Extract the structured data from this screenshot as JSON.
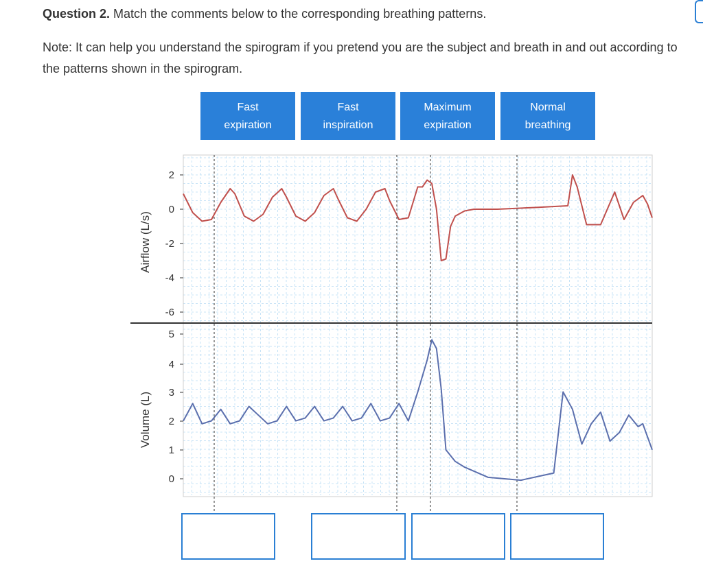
{
  "question": {
    "number_label": "Question 2.",
    "text": " Match the comments below to the corresponding breathing patterns.",
    "note": "Note: It can help you understand the spirogram if you pretend you are the subject and breath in and out according to the patterns shown in the spirogram."
  },
  "chips": [
    {
      "line1": "Fast",
      "line2": "expiration"
    },
    {
      "line1": "Fast",
      "line2": "inspiration"
    },
    {
      "line1": "Maximum",
      "line2": "expiration"
    },
    {
      "line1": "Normal",
      "line2": "breathing"
    }
  ],
  "colors": {
    "chip_bg": "#2a80d9",
    "airflow_line": "#c0504d",
    "volume_line": "#5b6fad",
    "grid": "#b9dcf5",
    "dropbox_border": "#2a7fd4"
  },
  "chart_data": [
    {
      "type": "line",
      "ylabel": "Airflow (L/s)",
      "ytick_labels": [
        "2",
        "0",
        "-2",
        "-4",
        "-6"
      ],
      "ylim": [
        -6.7,
        2.8
      ],
      "grid": true,
      "series": [
        {
          "x": [
            0,
            2,
            4,
            6,
            8,
            10,
            11,
            13,
            15,
            17,
            19,
            21,
            22,
            24,
            26,
            28,
            30,
            32,
            33,
            35,
            37,
            39,
            41,
            43,
            44,
            46,
            48,
            50,
            51,
            52,
            53,
            54,
            55,
            56,
            57,
            58,
            60,
            62,
            67,
            75,
            82,
            83,
            84,
            86,
            89,
            92,
            94,
            96,
            98,
            99,
            100
          ],
          "y": [
            0.9,
            -0.2,
            -0.7,
            -0.6,
            0.4,
            1.2,
            0.9,
            -0.4,
            -0.7,
            -0.3,
            0.7,
            1.2,
            0.7,
            -0.4,
            -0.7,
            -0.2,
            0.8,
            1.2,
            0.6,
            -0.5,
            -0.7,
            0.0,
            1.0,
            1.2,
            0.5,
            -0.6,
            -0.5,
            1.3,
            1.3,
            1.7,
            1.5,
            0.0,
            -3.0,
            -2.9,
            -1.0,
            -0.4,
            -0.1,
            0.0,
            0.0,
            0.1,
            0.2,
            2.0,
            1.3,
            -0.9,
            -0.9,
            1.0,
            -0.6,
            0.4,
            0.8,
            0.3,
            -0.5
          ]
        }
      ]
    },
    {
      "type": "line",
      "ylabel": "Volume (L)",
      "ytick_labels": [
        "5",
        "4",
        "3",
        "2",
        "1",
        "0"
      ],
      "ylim": [
        -0.5,
        5.4
      ],
      "grid": true,
      "series": [
        {
          "x": [
            0,
            2,
            4,
            6,
            8,
            10,
            12,
            14,
            16,
            18,
            20,
            22,
            24,
            26,
            28,
            30,
            32,
            34,
            36,
            38,
            40,
            42,
            44,
            46,
            48,
            50,
            52,
            53,
            54,
            55,
            56,
            58,
            60,
            65,
            72,
            79,
            81,
            83,
            85,
            87,
            89,
            91,
            93,
            95,
            97,
            98,
            100
          ],
          "y": [
            2.0,
            2.6,
            1.9,
            2.0,
            2.4,
            1.9,
            2.0,
            2.5,
            2.2,
            1.9,
            2.0,
            2.5,
            2.0,
            2.1,
            2.5,
            2.0,
            2.1,
            2.5,
            2.0,
            2.1,
            2.6,
            2.0,
            2.1,
            2.6,
            2.0,
            3.0,
            4.1,
            4.8,
            4.5,
            3.1,
            1.0,
            0.6,
            0.4,
            0.05,
            -0.05,
            0.2,
            3.0,
            2.4,
            1.2,
            1.9,
            2.3,
            1.3,
            1.6,
            2.2,
            1.8,
            1.9,
            1.0
          ]
        }
      ]
    }
  ]
}
